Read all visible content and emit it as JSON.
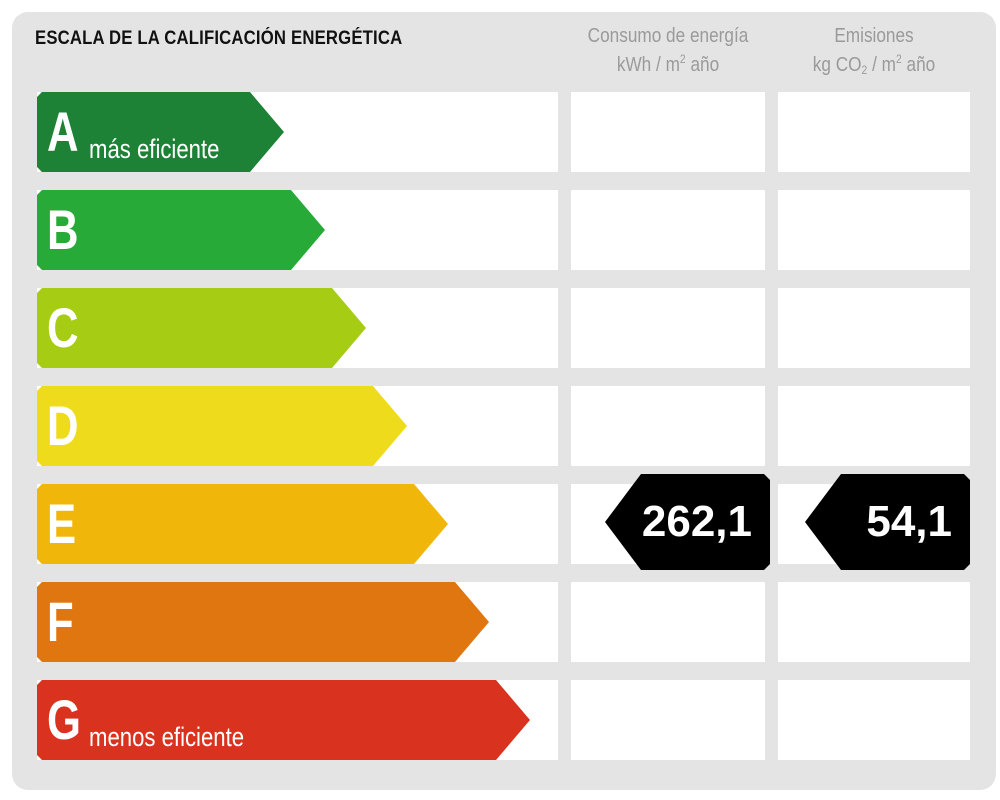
{
  "title": "ESCALA DE LA CALIFICACIÓN ENERGÉTICA",
  "columns": {
    "consumo": {
      "line1": "Consumo de energía",
      "unit_pre": "kWh / m",
      "unit_sup": "2",
      "unit_post": " año"
    },
    "emisiones": {
      "line1": "Emisiones",
      "unit_pre": "kg CO",
      "unit_sub": "2",
      "unit_mid": " / m",
      "unit_sup": "2",
      "unit_post": " año"
    }
  },
  "classes": [
    {
      "letter": "A",
      "sublabel": "más eficiente",
      "color": "#1e8236"
    },
    {
      "letter": "B",
      "sublabel": "",
      "color": "#27aa38"
    },
    {
      "letter": "C",
      "sublabel": "",
      "color": "#a6cc14"
    },
    {
      "letter": "D",
      "sublabel": "",
      "color": "#eedc1c"
    },
    {
      "letter": "E",
      "sublabel": "",
      "color": "#f0b70a"
    },
    {
      "letter": "F",
      "sublabel": "",
      "color": "#e0760f"
    },
    {
      "letter": "G",
      "sublabel": "menos eficiente",
      "color": "#d9321f"
    }
  ],
  "rating": {
    "class": "E",
    "consumo_value": "262,1",
    "emisiones_value": "54,1"
  }
}
